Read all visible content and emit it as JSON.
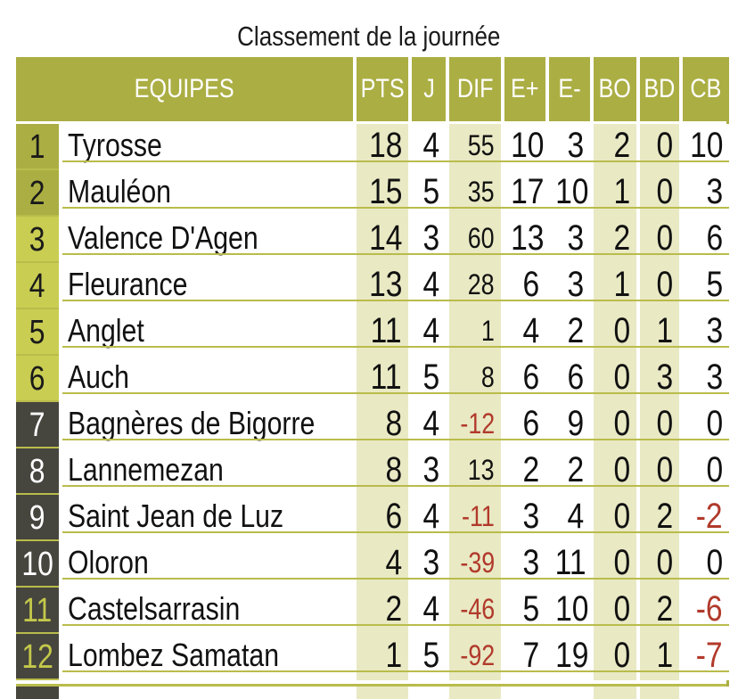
{
  "title": "Classement de la journée",
  "table": {
    "header": {
      "equipes": "EQUIPES",
      "pts": "PTS",
      "j": "J",
      "dif": "DIF",
      "e_plus": "E+",
      "e_minus": "E-",
      "bo": "BO",
      "bd": "BD",
      "cb": "CB"
    },
    "rows": [
      {
        "rank": "1",
        "team": "Tyrosse",
        "pts": "18",
        "j": "4",
        "dif": "55",
        "ep": "10",
        "em": "3",
        "bo": "2",
        "bd": "0",
        "cb": "10",
        "tier": "olive"
      },
      {
        "rank": "2",
        "team": "Mauléon",
        "pts": "15",
        "j": "5",
        "dif": "35",
        "ep": "17",
        "em": "10",
        "bo": "1",
        "bd": "0",
        "cb": "3",
        "tier": "olive"
      },
      {
        "rank": "3",
        "team": "Valence D'Agen",
        "pts": "14",
        "j": "3",
        "dif": "60",
        "ep": "13",
        "em": "3",
        "bo": "2",
        "bd": "0",
        "cb": "6",
        "tier": "green"
      },
      {
        "rank": "4",
        "team": "Fleurance",
        "pts": "13",
        "j": "4",
        "dif": "28",
        "ep": "6",
        "em": "3",
        "bo": "1",
        "bd": "0",
        "cb": "5",
        "tier": "green"
      },
      {
        "rank": "5",
        "team": "Anglet",
        "pts": "11",
        "j": "4",
        "dif": "1",
        "ep": "4",
        "em": "2",
        "bo": "0",
        "bd": "1",
        "cb": "3",
        "tier": "green"
      },
      {
        "rank": "6",
        "team": "Auch",
        "pts": "11",
        "j": "5",
        "dif": "8",
        "ep": "6",
        "em": "6",
        "bo": "0",
        "bd": "3",
        "cb": "3",
        "tier": "green"
      },
      {
        "rank": "7",
        "team": "Bagnères de Bigorre",
        "pts": "8",
        "j": "4",
        "dif": "-12",
        "ep": "6",
        "em": "9",
        "bo": "0",
        "bd": "0",
        "cb": "0",
        "tier": "dark"
      },
      {
        "rank": "8",
        "team": "Lannemezan",
        "pts": "8",
        "j": "3",
        "dif": "13",
        "ep": "2",
        "em": "2",
        "bo": "0",
        "bd": "0",
        "cb": "0",
        "tier": "dark"
      },
      {
        "rank": "9",
        "team": "Saint Jean de Luz",
        "pts": "6",
        "j": "4",
        "dif": "-11",
        "ep": "3",
        "em": "4",
        "bo": "0",
        "bd": "2",
        "cb": "-2",
        "tier": "dark"
      },
      {
        "rank": "10",
        "team": "Oloron",
        "pts": "4",
        "j": "3",
        "dif": "-39",
        "ep": "3",
        "em": "11",
        "bo": "0",
        "bd": "0",
        "cb": "0",
        "tier": "dark"
      },
      {
        "rank": "11",
        "team": "Castelsarrasin",
        "pts": "2",
        "j": "4",
        "dif": "-46",
        "ep": "5",
        "em": "10",
        "bo": "0",
        "bd": "2",
        "cb": "-6",
        "tier": "dark-green"
      },
      {
        "rank": "12",
        "team": "Lombez Samatan",
        "pts": "1",
        "j": "5",
        "dif": "-92",
        "ep": "7",
        "em": "19",
        "bo": "0",
        "bd": "1",
        "cb": "-7",
        "tier": "dark-green"
      }
    ]
  },
  "colors": {
    "olive": "#abae43",
    "chartreuse": "#c9cd52",
    "dark": "#46453e",
    "beige": "#e9e9c4",
    "line": "#b9bc4b",
    "negative_red": "#b13a2b",
    "rank_green_text": "#c3c84b",
    "header_text": "#ffffff",
    "text": "#111111"
  }
}
